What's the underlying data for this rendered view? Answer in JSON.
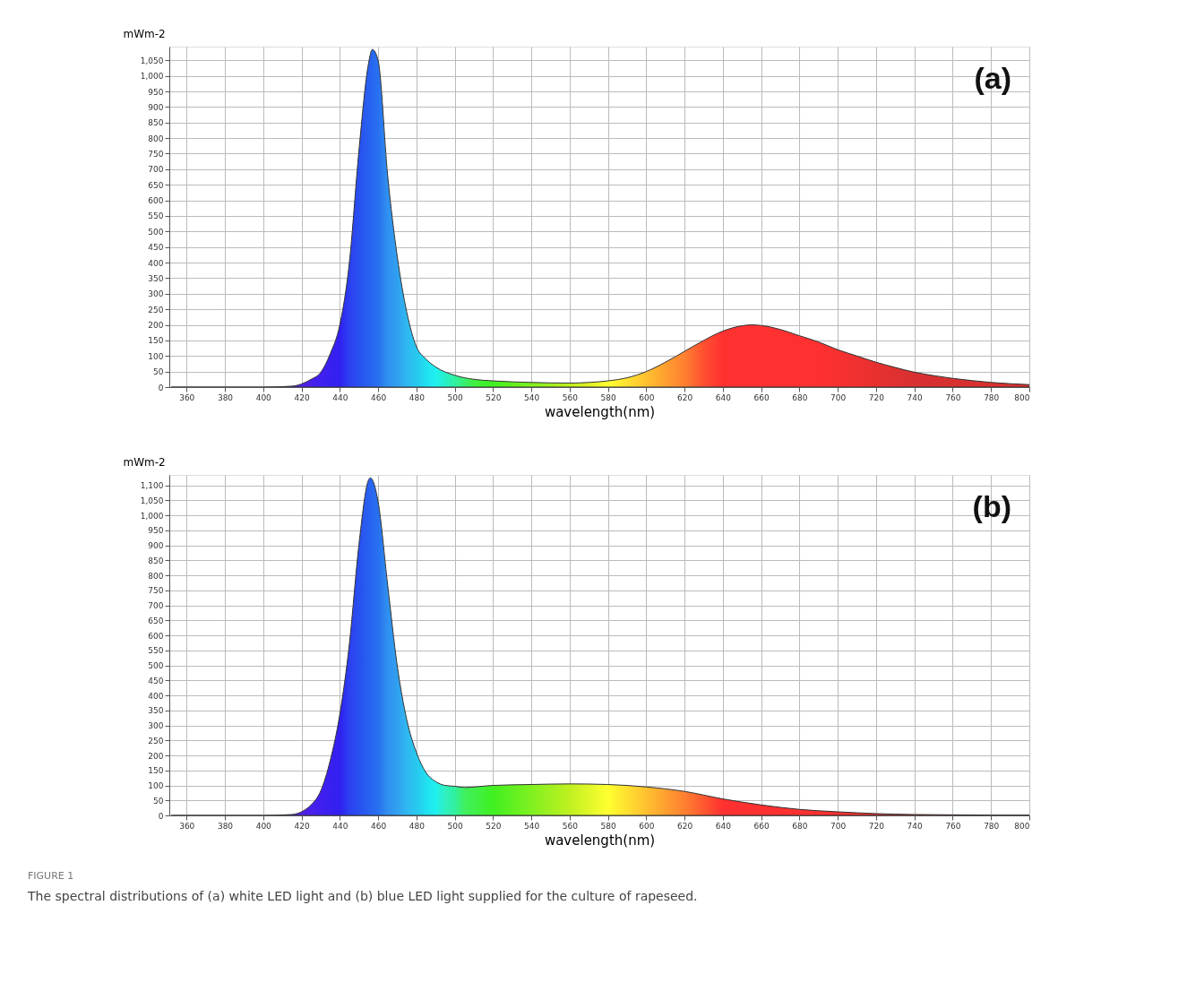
{
  "chart_data": [
    {
      "type": "area",
      "xlabel": "wavelength(nm)",
      "ylabel": "mWm-2",
      "annotations": [
        "(a)"
      ],
      "grid": true,
      "xlim": [
        351,
        800
      ],
      "xticks": [
        360,
        380,
        400,
        420,
        440,
        460,
        480,
        500,
        520,
        540,
        560,
        580,
        600,
        620,
        640,
        660,
        680,
        700,
        720,
        740,
        760,
        780,
        800
      ],
      "ylim": [
        0,
        1094
      ],
      "yticks": [
        0,
        50,
        100,
        150,
        200,
        250,
        300,
        350,
        400,
        450,
        500,
        550,
        600,
        650,
        700,
        750,
        800,
        850,
        900,
        950,
        {
          "value": 1000,
          "label": "1,000"
        },
        {
          "value": 1050,
          "label": "1,050"
        }
      ],
      "series": [
        {
          "x": [
            352,
            380,
            400,
            415,
            420,
            425,
            430,
            435,
            440,
            445,
            450,
            455,
            457,
            460,
            465,
            470,
            475,
            480,
            485,
            490,
            500,
            510,
            520,
            540,
            560,
            570,
            580,
            590,
            600,
            610,
            620,
            630,
            640,
            650,
            655,
            660,
            670,
            680,
            690,
            700,
            710,
            720,
            730,
            740,
            750,
            760,
            770,
            780,
            790,
            800
          ],
          "values": [
            0,
            0,
            0,
            3,
            10,
            25,
            47,
            107,
            200,
            400,
            760,
            1040,
            1085,
            1050,
            680,
            420,
            240,
            130,
            90,
            65,
            38,
            25,
            20,
            15,
            13,
            15,
            20,
            30,
            50,
            80,
            115,
            150,
            180,
            197,
            200,
            198,
            185,
            165,
            145,
            120,
            100,
            80,
            63,
            48,
            37,
            28,
            21,
            15,
            11,
            8
          ],
          "colors": [
            "#5a20e0",
            "#5a20e0",
            "#5a20e0",
            "#5a20e0",
            "#5020e8",
            "#4a20ea",
            "#4020f0",
            "#3820f0",
            "#3020f0",
            "#2c40f0",
            "#2850f0",
            "#2860f0",
            "#2868f0",
            "#2870f0",
            "#3090f0",
            "#30a0f0",
            "#30b8f0",
            "#28c8f0",
            "#20e0f0",
            "#20f0f0",
            "#30f0a0",
            "#40f040",
            "#40f020",
            "#80f020",
            "#c0f020",
            "#e0f020",
            "#ffff30",
            "#ffe030",
            "#ffc030",
            "#ffa030",
            "#ff8030",
            "#ff5030",
            "#ff3030",
            "#ff3030",
            "#ff3030",
            "#ff3030",
            "#ff3030",
            "#ff3030",
            "#ff3030",
            "#f83030",
            "#f03030",
            "#e83030",
            "#e03030",
            "#d83030",
            "#d83030",
            "#d83030",
            "#d83030",
            "#d83030",
            "#d83030",
            "#d83030"
          ]
        }
      ]
    },
    {
      "type": "area",
      "xlabel": "wavelength(nm)",
      "ylabel": "mWm-2",
      "annotations": [
        "(b)",
        "FIGURE 1",
        "The spectral distributions of (a) white LED light and (b) blue LED light supplied for the culture of rapeseed."
      ],
      "grid": true,
      "xlim": [
        351,
        800
      ],
      "xticks": [
        360,
        380,
        400,
        420,
        440,
        460,
        480,
        500,
        520,
        540,
        560,
        580,
        600,
        620,
        640,
        660,
        680,
        700,
        720,
        740,
        760,
        780,
        800
      ],
      "ylim": [
        0,
        1135
      ],
      "yticks": [
        0,
        50,
        100,
        150,
        200,
        250,
        300,
        350,
        400,
        450,
        500,
        550,
        600,
        650,
        700,
        750,
        800,
        850,
        900,
        950,
        {
          "value": 1000,
          "label": "1,000"
        },
        {
          "value": 1050,
          "label": "1,050"
        },
        {
          "value": 1100,
          "label": "1,100"
        }
      ],
      "series": [
        {
          "x": [
            352,
            380,
            400,
            415,
            420,
            425,
            430,
            435,
            440,
            445,
            450,
            455,
            456,
            460,
            465,
            470,
            475,
            480,
            485,
            490,
            495,
            500,
            505,
            520,
            540,
            560,
            580,
            600,
            620,
            640,
            660,
            680,
            700,
            720,
            740,
            760,
            780,
            800
          ],
          "values": [
            0,
            0,
            0,
            3,
            12,
            35,
            81,
            183,
            337,
            571,
            903,
            1118,
            1125,
            1046,
            768,
            499,
            318,
            210,
            143,
            113,
            100,
            97,
            93,
            100,
            103,
            105,
            103,
            95,
            80,
            55,
            35,
            20,
            12,
            6,
            3,
            2,
            1,
            1
          ],
          "colors": [
            "#5a20e0",
            "#5a20e0",
            "#5a20e0",
            "#5a20e0",
            "#5020e8",
            "#4a20ea",
            "#4020f0",
            "#3820f0",
            "#3020f0",
            "#2c40f0",
            "#2850f0",
            "#2860f0",
            "#2864f0",
            "#2870f0",
            "#3090f0",
            "#30a0f0",
            "#30b8f0",
            "#28c8f0",
            "#20e0f0",
            "#20f0f0",
            "#30f0c0",
            "#30f0a0",
            "#40f060",
            "#40f020",
            "#80f020",
            "#c0f020",
            "#ffff30",
            "#ffc030",
            "#ff8030",
            "#ff3030",
            "#ff3030",
            "#ff3030",
            "#f83030",
            "#e83030",
            "#d83030",
            "#d83030",
            "#d83030",
            "#d83030"
          ]
        }
      ]
    }
  ]
}
